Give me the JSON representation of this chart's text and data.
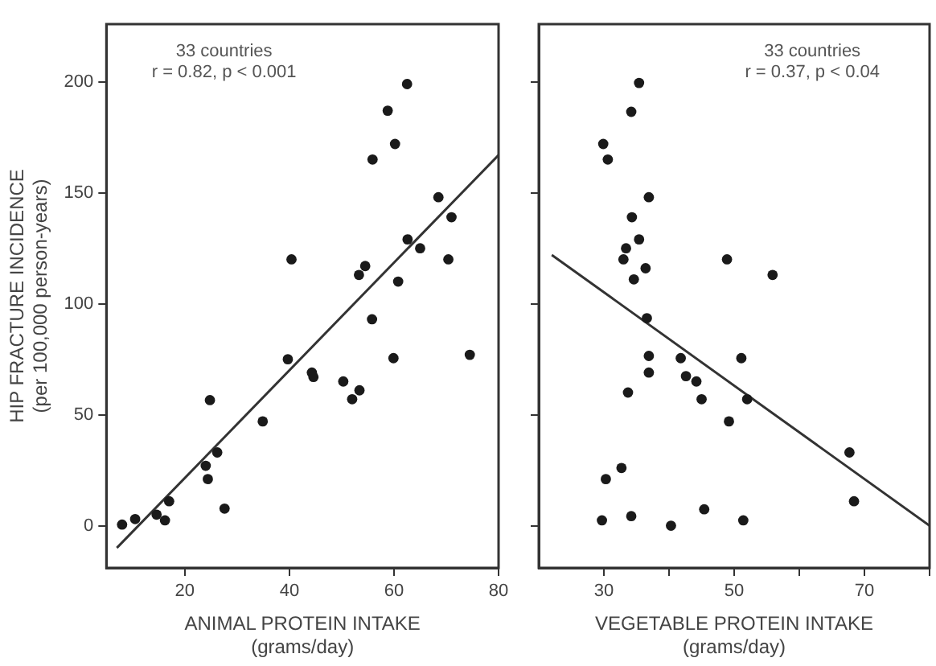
{
  "chart_data": [
    {
      "type": "scatter",
      "xlabel": "ANIMAL PROTEIN INTAKE\n(grams/day)",
      "ylabel": "HIP FRACTURE INCIDENCE\n(per 100,000 person-years)",
      "annotations": [
        "33 countries",
        "r = 0.82, p < 0.001"
      ],
      "xlim": [
        5,
        80
      ],
      "xticks": [
        20,
        40,
        60,
        80
      ],
      "ylim": [
        -19,
        226
      ],
      "yticks": [
        0,
        50,
        100,
        150,
        200
      ],
      "grid": false,
      "legend": false,
      "marker": "circle",
      "series": [
        {
          "color": "#1a1a1a",
          "x": [
            62.5,
            58.8,
            60.2,
            55.9,
            68.5,
            71,
            62.6,
            65,
            70.4,
            40.4,
            54.5,
            53.3,
            60.8,
            55.8,
            59.9,
            74.5,
            39.7,
            44.3,
            44.6,
            50.3,
            53.4,
            52,
            24.8,
            34.9,
            26.2,
            24,
            24.4,
            27.6,
            17,
            14.6,
            16.2,
            10.5,
            8
          ],
          "values": [
            199,
            187,
            172,
            165,
            148,
            139,
            129,
            125,
            120,
            120,
            117,
            113,
            110,
            93,
            75.5,
            77,
            75,
            69,
            67,
            65,
            61,
            57,
            56.6,
            47,
            33,
            27,
            21,
            7.7,
            11,
            5,
            2.4,
            3,
            0.5
          ]
        },
        {
          "type": "line",
          "color": "#333333",
          "x": [
            7,
            80
          ],
          "values": [
            -10,
            167
          ],
          "marker": "none"
        }
      ]
    },
    {
      "type": "scatter",
      "xlabel": "VEGETABLE PROTEIN INTAKE\n(grams/day)",
      "annotations": [
        "33 countries",
        "r = 0.37, p < 0.04"
      ],
      "xlim": [
        20,
        80
      ],
      "xticks": [
        {
          "value": 30,
          "label": "30"
        },
        {
          "value": 40,
          "label": null
        },
        {
          "value": 50,
          "label": "50"
        },
        {
          "value": 60,
          "label": null
        },
        {
          "value": 70,
          "label": "70"
        },
        {
          "value": 80,
          "label": null
        }
      ],
      "ylim": [
        -19,
        226
      ],
      "yticks": [
        {
          "value": 0,
          "label": null
        },
        {
          "value": 50,
          "label": null
        },
        {
          "value": 100,
          "label": null
        },
        {
          "value": 150,
          "label": null
        },
        {
          "value": 200,
          "label": null
        }
      ],
      "tick_labels": "x",
      "grid": false,
      "legend": false,
      "marker": "circle",
      "series": [
        {
          "color": "#1a1a1a",
          "x": [
            35.4,
            34.2,
            29.9,
            30.6,
            36.9,
            34.3,
            35.4,
            33.4,
            33,
            48.9,
            36.4,
            55.9,
            34.6,
            36.6,
            36.9,
            41.8,
            51.1,
            36.9,
            42.6,
            44.2,
            33.7,
            45,
            52,
            49.2,
            67.7,
            32.7,
            30.3,
            68.4,
            45.4,
            34.2,
            29.7,
            51.4,
            40.3
          ],
          "values": [
            199.5,
            186.5,
            172,
            165,
            148,
            139,
            129,
            125,
            120,
            120,
            116,
            113,
            111,
            93.5,
            76.5,
            75.5,
            75.5,
            69,
            67.4,
            65,
            60,
            57,
            57,
            47,
            33,
            26,
            21,
            11,
            7.4,
            4.3,
            2.4,
            2.4,
            0
          ]
        },
        {
          "type": "line",
          "color": "#333333",
          "x": [
            22,
            80
          ],
          "values": [
            122,
            0
          ],
          "marker": "none"
        }
      ]
    }
  ]
}
